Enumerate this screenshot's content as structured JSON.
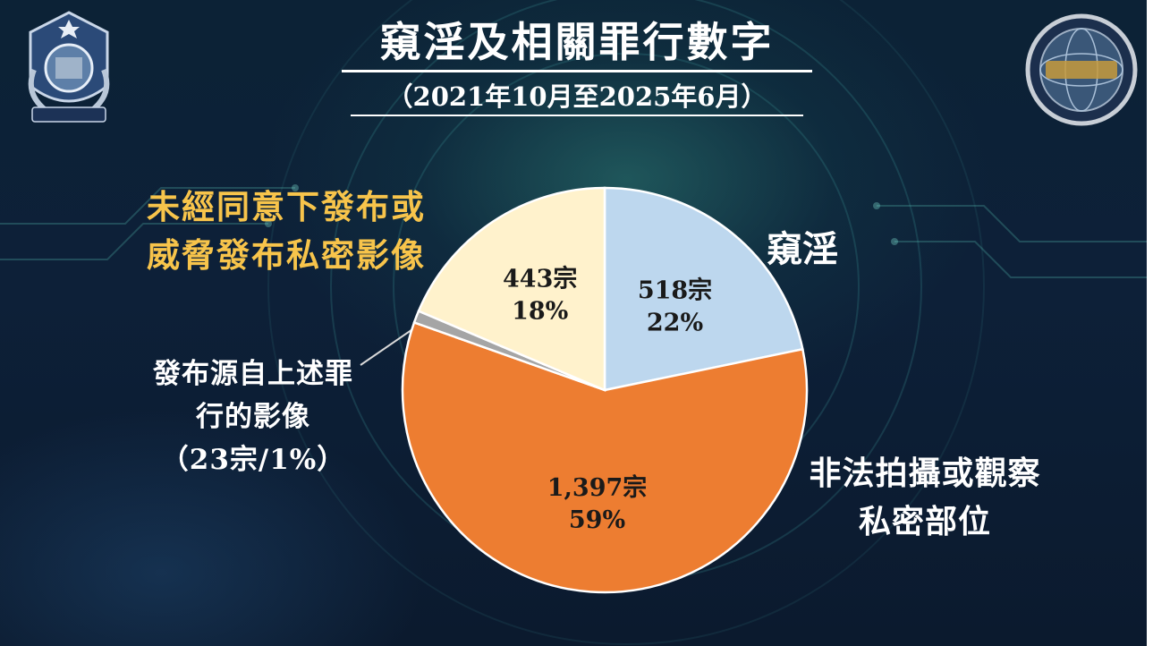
{
  "header": {
    "title": "窺淫及相關罪行數字",
    "subtitle": "（2021年10月至2025年6月）"
  },
  "logos": {
    "police": "hong-kong-police-badge-icon",
    "cstcb": "cyber-security-technology-crime-bureau-badge-icon"
  },
  "labels": {
    "ndp_line1": "未經同意下發布或",
    "ndp_line2": "威脅發布私密影像",
    "voyeurism": "窺淫",
    "photo_line1": "非法拍攝或觀察",
    "photo_line2": "私密部位",
    "src_line1": "發布源自上述罪",
    "src_line2": "行的影像",
    "src_line3": "（23宗/1%）"
  },
  "colors": {
    "voyeurism": "#bdd7ee",
    "photo": "#ed7d31",
    "source": "#a5a5a5",
    "ndp": "#fff2cc",
    "ndp_text": "#f7c44b",
    "background": "#0c2236"
  },
  "chart_data": {
    "type": "pie",
    "unit": "宗",
    "slices": [
      {
        "name": "窺淫",
        "value": 518,
        "count_label": "518宗",
        "percent_label": "22%",
        "color": "#bdd7ee"
      },
      {
        "name": "非法拍攝或觀察私密部位",
        "value": 1397,
        "count_label": "1,397宗",
        "percent_label": "59%",
        "color": "#ed7d31"
      },
      {
        "name": "發布源自上述罪行的影像",
        "value": 23,
        "count_label": "23宗",
        "percent_label": "1%",
        "color": "#a5a5a5"
      },
      {
        "name": "未經同意下發布或威脅發布私密影像",
        "value": 443,
        "count_label": "443宗",
        "percent_label": "18%",
        "color": "#fff2cc"
      }
    ],
    "start": "12 o'clock",
    "direction": "clockwise"
  }
}
